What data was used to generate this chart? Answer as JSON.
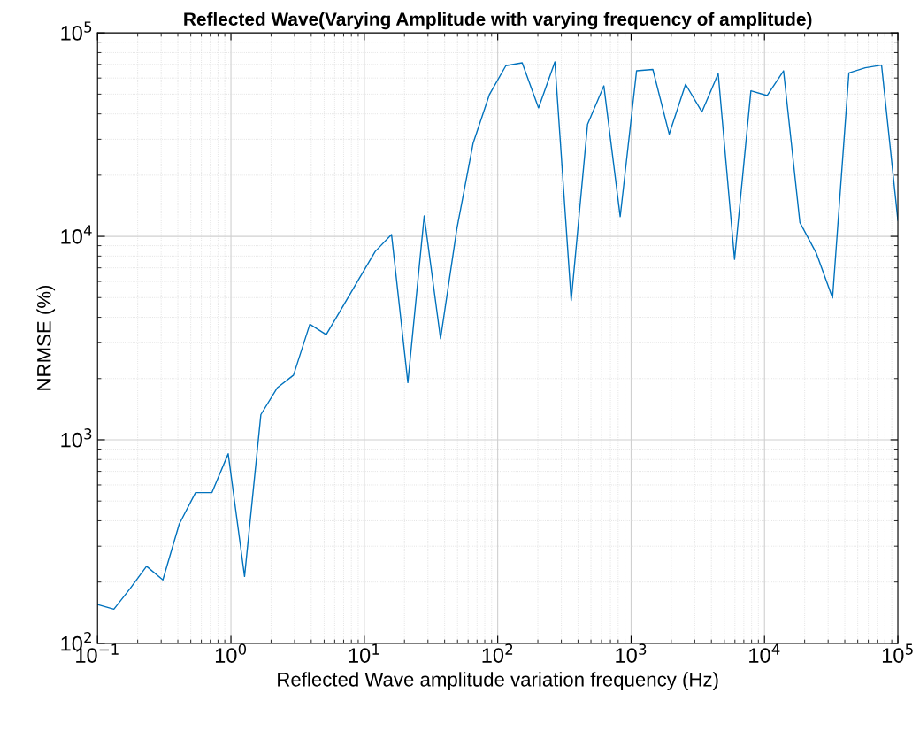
{
  "chart_data": {
    "type": "line",
    "title": "Reflected Wave(Varying Amplitude with varying frequency of amplitude)",
    "xlabel": "Reflected Wave amplitude variation frequency (Hz)",
    "ylabel": "NRMSE (%)",
    "log": "xy",
    "grid": true,
    "marker": "none",
    "line_style": "solid",
    "xlim": [
      0.1,
      100000
    ],
    "ylim": [
      100,
      100000
    ],
    "xticks": [
      {
        "value": 0.1,
        "label": "10$^{−1}$"
      },
      {
        "value": 1,
        "label": "10$^{0}$"
      },
      {
        "value": 10,
        "label": "10$^{1}$"
      },
      {
        "value": 100,
        "label": "10$^{2}$"
      },
      {
        "value": 1000,
        "label": "10$^{3}$"
      },
      {
        "value": 10000,
        "label": "10$^{4}$"
      },
      {
        "value": 100000,
        "label": "10$^{5}$"
      }
    ],
    "yticks": [
      {
        "value": 100,
        "label": "10$^{2}$"
      },
      {
        "value": 1000,
        "label": "10$^{3}$"
      },
      {
        "value": 10000,
        "label": "10$^{4}$"
      },
      {
        "value": 100000,
        "label": "10$^{5}$"
      }
    ],
    "series": [
      {
        "color": "#0072bd",
        "x": [
          0.1,
          0.1326,
          0.1758,
          0.233,
          0.3089,
          0.4095,
          0.5429,
          0.7197,
          0.9541,
          1.265,
          1.677,
          2.223,
          2.947,
          3.907,
          5.179,
          6.866,
          9.103,
          12.07,
          16.0,
          21.21,
          28.12,
          37.28,
          49.42,
          65.51,
          86.85,
          115.1,
          152.6,
          202.4,
          268.3,
          355.6,
          471.5,
          625.1,
          828.6,
          1099,
          1456,
          1931,
          2560,
          3393,
          4498,
          5964,
          7906,
          10481,
          13895,
          18421,
          24421,
          32375,
          42919,
          56899,
          75431,
          100000
        ],
        "values": [
          155,
          147,
          186,
          239,
          205,
          385,
          550,
          550,
          854,
          213,
          1330,
          1800,
          2080,
          3700,
          3290,
          4500,
          6160,
          8430,
          10200,
          1910,
          12600,
          3140,
          10900,
          28800,
          49900,
          69000,
          71300,
          42800,
          72000,
          4830,
          35500,
          54900,
          12500,
          65100,
          66100,
          31800,
          55900,
          40900,
          63000,
          7700,
          51900,
          49200,
          65100,
          11700,
          8290,
          4980,
          63600,
          67400,
          69400,
          12000
        ]
      }
    ]
  }
}
